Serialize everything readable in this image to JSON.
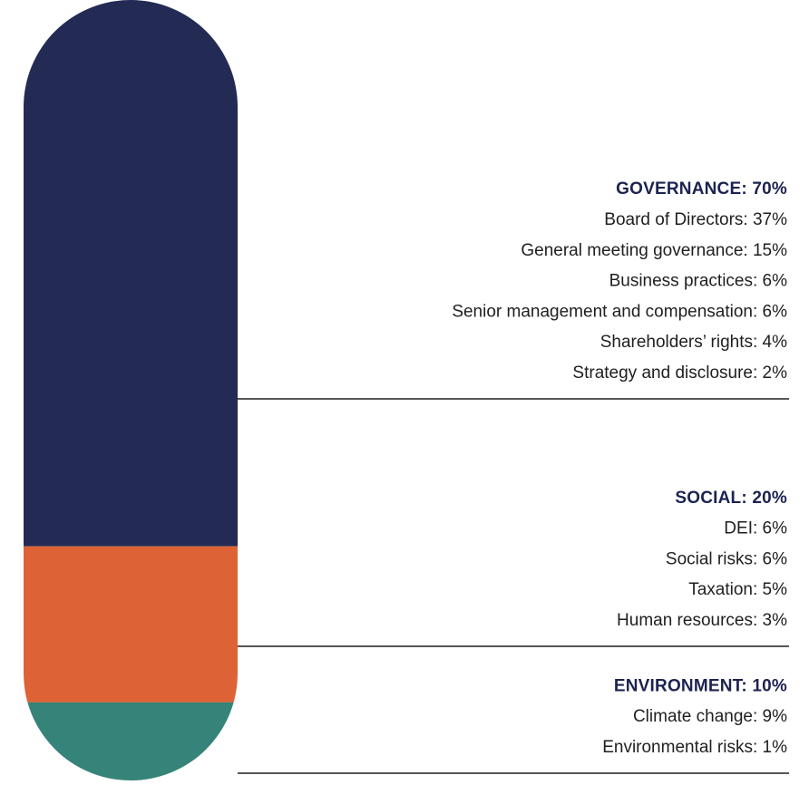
{
  "chart_data": {
    "type": "stacked-pill",
    "ylim": [
      0,
      100
    ],
    "segments": [
      {
        "label": "GOVERNANCE: 70%",
        "value": 70,
        "color": "#232b55",
        "items": [
          {
            "label": "Board of Directors: 37%",
            "value": 37
          },
          {
            "label": "General meeting governance: 15%",
            "value": 15
          },
          {
            "label": "Business practices: 6%",
            "value": 6
          },
          {
            "label": "Senior management and compensation: 6%",
            "value": 6
          },
          {
            "label": "Shareholders’ rights: 4%",
            "value": 4
          },
          {
            "label": "Strategy and disclosure: 2%",
            "value": 2
          }
        ]
      },
      {
        "label": "SOCIAL: 20%",
        "value": 20,
        "color": "#dd6236",
        "items": [
          {
            "label": "DEI: 6%",
            "value": 6
          },
          {
            "label": "Social risks: 6%",
            "value": 6
          },
          {
            "label": "Taxation: 5%",
            "value": 5
          },
          {
            "label": "Human resources: 3%",
            "value": 3
          }
        ]
      },
      {
        "label": "ENVIRONMENT: 10%",
        "value": 10,
        "color": "#358379",
        "items": [
          {
            "label": "Climate change: 9%",
            "value": 9
          },
          {
            "label": "Environmental risks: 1%",
            "value": 1
          }
        ]
      }
    ]
  }
}
